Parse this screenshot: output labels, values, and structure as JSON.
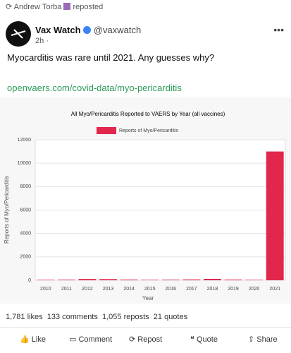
{
  "repost": {
    "user": "Andrew Torba",
    "label": "reposted"
  },
  "post": {
    "name": "Vax Watch",
    "handle": "@vaxwatch",
    "time": "2h ·",
    "text": "Myocarditis was rare until 2021. Any guesses why?",
    "link": "openvaers.com/covid-data/myo-pericarditis"
  },
  "chart_data": {
    "type": "bar",
    "title": "All Myo/Pericarditis Reported to VAERS by Year (all vaccines)",
    "x_label": "Year",
    "y_label": "Reports of Myo/Pericarditis",
    "categories": [
      "2010",
      "2011",
      "2012",
      "2013",
      "2014",
      "2015",
      "2016",
      "2017",
      "2018",
      "2019",
      "2020",
      "2021"
    ],
    "series": [
      {
        "name": "Reports of Myo/Pericarditis",
        "color": "#e2264c",
        "values": [
          40,
          50,
          110,
          100,
          60,
          40,
          50,
          70,
          120,
          60,
          40,
          11000
        ]
      }
    ],
    "ylim": [
      0,
      12000
    ],
    "yticks": [
      0,
      2000,
      4000,
      6000,
      8000,
      10000,
      12000
    ],
    "grid": true
  },
  "stats": {
    "likes": "1,781 likes",
    "comments": "133 comments",
    "reposts": "1,055 reposts",
    "quotes": "21 quotes"
  },
  "actions": [
    "Like",
    "Comment",
    "Repost",
    "Quote",
    "Share"
  ]
}
